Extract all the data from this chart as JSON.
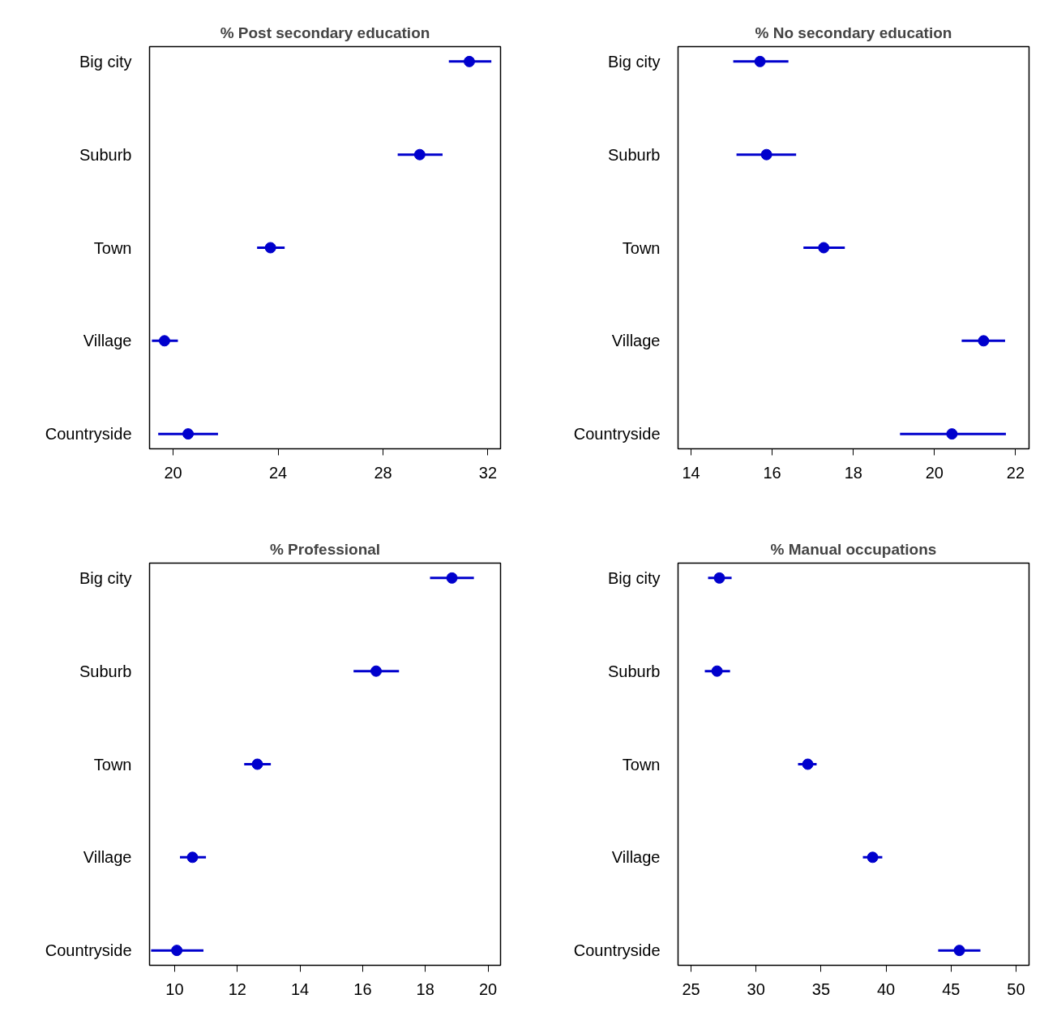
{
  "chart_data": [
    {
      "type": "scatter",
      "orientation": "horizontal",
      "title": "% Post secondary education",
      "categories": [
        "Big city",
        "Suburb",
        "Town",
        "Village",
        "Countryside"
      ],
      "values": [
        31.29,
        29.4,
        23.71,
        19.67,
        20.57
      ],
      "errors": [
        [
          30.51,
          32.13
        ],
        [
          28.56,
          30.27
        ],
        [
          23.2,
          24.25
        ],
        [
          19.19,
          20.18
        ],
        [
          19.43,
          21.71
        ]
      ],
      "color": "#0000cd",
      "marker": "circle",
      "xlim": [
        19.1,
        32.48
      ],
      "xticks": [
        20,
        24,
        28,
        32
      ],
      "grid": false
    },
    {
      "type": "scatter",
      "orientation": "horizontal",
      "title": "% No secondary education",
      "categories": [
        "Big city",
        "Suburb",
        "Town",
        "Village",
        "Countryside"
      ],
      "values": [
        15.7,
        15.86,
        17.27,
        21.21,
        20.43
      ],
      "errors": [
        [
          15.04,
          16.4
        ],
        [
          15.12,
          16.59
        ],
        [
          16.77,
          17.79
        ],
        [
          20.67,
          21.74
        ],
        [
          19.15,
          21.76
        ]
      ],
      "color": "#0000cd",
      "marker": "circle",
      "xlim": [
        13.68,
        22.33
      ],
      "xticks": [
        14,
        16,
        18,
        20,
        22
      ],
      "grid": false
    },
    {
      "type": "scatter",
      "orientation": "horizontal",
      "title": "% Professional",
      "categories": [
        "Big city",
        "Suburb",
        "Town",
        "Village",
        "Countryside"
      ],
      "values": [
        18.85,
        16.43,
        12.64,
        10.57,
        10.07
      ],
      "errors": [
        [
          18.15,
          19.55
        ],
        [
          15.71,
          17.16
        ],
        [
          12.22,
          13.07
        ],
        [
          10.17,
          11.0
        ],
        [
          9.25,
          10.92
        ]
      ],
      "color": "#0000cd",
      "marker": "circle",
      "xlim": [
        9.2,
        20.4
      ],
      "xticks": [
        10,
        12,
        14,
        16,
        18,
        20
      ],
      "grid": false
    },
    {
      "type": "scatter",
      "orientation": "horizontal",
      "title": "% Manual occupations",
      "categories": [
        "Big city",
        "Suburb",
        "Town",
        "Village",
        "Countryside"
      ],
      "values": [
        27.18,
        27.0,
        33.98,
        38.97,
        45.64
      ],
      "errors": [
        [
          26.31,
          28.12
        ],
        [
          26.06,
          28.0
        ],
        [
          33.23,
          34.66
        ],
        [
          38.22,
          39.71
        ],
        [
          44.01,
          47.26
        ]
      ],
      "color": "#0000cd",
      "marker": "circle",
      "xlim": [
        24.0,
        51.0
      ],
      "xticks": [
        25,
        30,
        35,
        40,
        45,
        50
      ],
      "grid": false
    }
  ]
}
